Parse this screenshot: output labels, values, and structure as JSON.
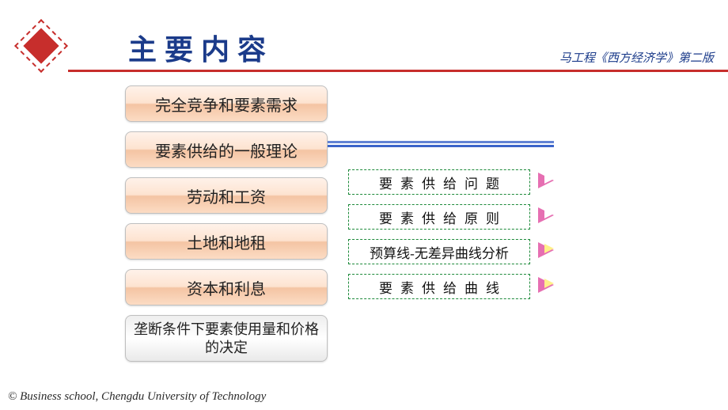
{
  "header": {
    "title": "主要内容",
    "subtitle": "马工程《西方经济学》第二版",
    "title_color": "#1b3b8a",
    "accent_color": "#c72e2c"
  },
  "boxes": [
    {
      "label": "完全竞争和要素需求",
      "highlight": false
    },
    {
      "label": "要素供给的一般理论",
      "highlight": false
    },
    {
      "label": "劳动和工资",
      "highlight": false
    },
    {
      "label": "土地和地租",
      "highlight": false
    },
    {
      "label": "资本和利息",
      "highlight": false
    },
    {
      "label": "垄断条件下要素使用量和价格的决定",
      "highlight": true
    }
  ],
  "sublist": [
    {
      "label": "要素供给问题",
      "spaced": true,
      "arrow_outer": "#e66fb2",
      "arrow_inner": "#ffffff"
    },
    {
      "label": "要素供给原则",
      "spaced": true,
      "arrow_outer": "#e66fb2",
      "arrow_inner": "#ffffff"
    },
    {
      "label": "预算线-无差异曲线分析",
      "spaced": false,
      "arrow_outer": "#e66fb2",
      "arrow_inner": "#fff08a"
    },
    {
      "label": "要素供给曲线",
      "spaced": true,
      "arrow_outer": "#e66fb2",
      "arrow_inner": "#fff08a"
    }
  ],
  "styling": {
    "box_gradient_top": "#fff2ea",
    "box_gradient_mid": "#f4c4a3",
    "box_gradient_bot": "#fcdcc4",
    "highlight_gradient": "#eeeeee",
    "sub_border": "#1d8a3a",
    "connector_color": "#3b64c9",
    "bg": "#ffffff"
  },
  "footer": "© Business school, Chengdu University of Technology"
}
